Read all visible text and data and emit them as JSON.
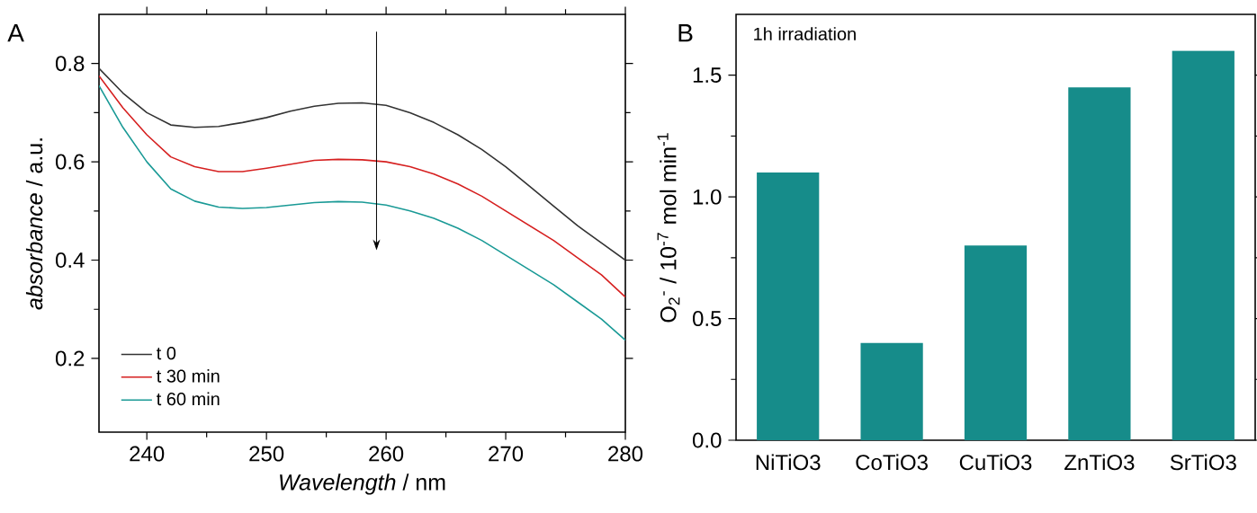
{
  "chart_data": [
    {
      "type": "line",
      "title": "A",
      "xlabel": "*Wavelength* / nm",
      "ylabel": "*absorbance* / a.u.",
      "x": [
        236,
        238,
        240,
        242,
        244,
        246,
        248,
        250,
        252,
        254,
        256,
        258,
        260,
        262,
        264,
        266,
        268,
        270,
        272,
        274,
        276,
        278,
        280
      ],
      "series": [
        {
          "name": "t 0",
          "color": "#333333",
          "values": [
            0.79,
            0.74,
            0.7,
            0.675,
            0.67,
            0.672,
            0.68,
            0.69,
            0.703,
            0.713,
            0.719,
            0.72,
            0.715,
            0.7,
            0.68,
            0.655,
            0.625,
            0.59,
            0.55,
            0.51,
            0.47,
            0.435,
            0.4
          ]
        },
        {
          "name": "t 30 min",
          "color": "#d62020",
          "values": [
            0.775,
            0.71,
            0.655,
            0.61,
            0.59,
            0.58,
            0.58,
            0.587,
            0.595,
            0.603,
            0.605,
            0.604,
            0.6,
            0.59,
            0.575,
            0.555,
            0.53,
            0.5,
            0.47,
            0.44,
            0.405,
            0.37,
            0.325
          ]
        },
        {
          "name": "t 60 min",
          "color": "#1a9a96",
          "values": [
            0.755,
            0.67,
            0.6,
            0.545,
            0.52,
            0.508,
            0.505,
            0.507,
            0.512,
            0.517,
            0.519,
            0.518,
            0.512,
            0.5,
            0.485,
            0.465,
            0.44,
            0.41,
            0.38,
            0.35,
            0.315,
            0.28,
            0.237
          ]
        }
      ],
      "xlim": [
        236,
        280
      ],
      "ylim": [
        0.05,
        0.9
      ],
      "xticks": [
        240,
        250,
        260,
        270,
        280
      ],
      "yticks": [
        0.2,
        0.4,
        0.6,
        0.8
      ],
      "legend": "bottom left",
      "line_style": "solid"
    },
    {
      "type": "bar",
      "title": "B",
      "ylabel": "O$_{2}$$^{-}$ / 10$^{-7}$ mol min$^{-1}$",
      "categories": [
        "NiTiO3",
        "CoTiO3",
        "CuTiO3",
        "ZnTiO3",
        "SrTiO3"
      ],
      "values": [
        1.1,
        0.4,
        0.8,
        1.45,
        1.6
      ],
      "color": "#168c8a",
      "ylim": [
        0,
        1.75
      ],
      "yticks": [
        {
          "value": 0,
          "label": "0.0"
        },
        {
          "value": 0.5,
          "label": "0.5"
        },
        {
          "value": 1,
          "label": "1.0"
        },
        {
          "value": 1.5,
          "label": "1.5"
        }
      ],
      "annotations": [
        "1h irradiation"
      ]
    }
  ]
}
